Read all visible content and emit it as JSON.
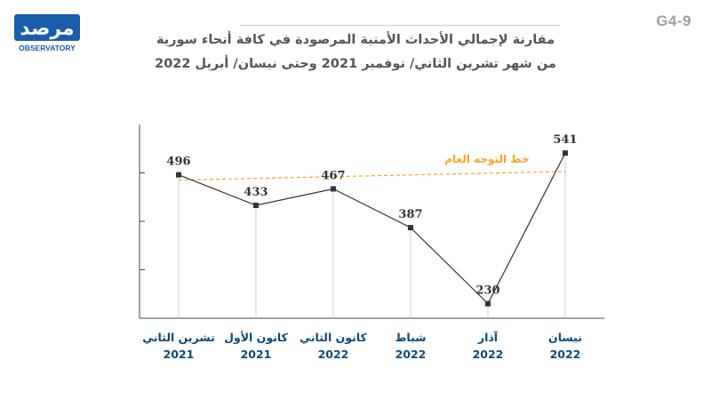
{
  "header": {
    "code": "G4-9",
    "title_line1": "مقارنة لإجمالي الأحداث الأمنية المرصودة في كافة أنحاء سورية",
    "title_line2": "من شهر تشرين الثاني/ نوفمبر 2021 وحتى  نيسان/ أبريل 2022"
  },
  "logo": {
    "text": "مرصد",
    "subtext": "OBSERVATORY"
  },
  "colors": {
    "line": "#333333",
    "trend": "#f5a623",
    "label": "#0d4a7a",
    "value": "#333333",
    "axis": "#444444",
    "grid": "#cccccc"
  },
  "chart_data": {
    "type": "line",
    "title": "مقارنة لإجمالي الأحداث الأمنية المرصودة في كافة أنحاء سورية",
    "categories": [
      {
        "month": "تشرين الثاني",
        "year": "2021"
      },
      {
        "month": "كانون الأول",
        "year": "2021"
      },
      {
        "month": "كانون الثاني",
        "year": "2022"
      },
      {
        "month": "شباط",
        "year": "2022"
      },
      {
        "month": "آذار",
        "year": "2022"
      },
      {
        "month": "نيسان",
        "year": "2022"
      }
    ],
    "values": [
      496,
      433,
      467,
      387,
      230,
      541
    ],
    "ylim": [
      200,
      600
    ],
    "yticks": [
      200,
      300,
      400,
      500
    ],
    "trend": {
      "label": "خط التوجه العام",
      "start": 485,
      "end": 503
    },
    "grid": false,
    "legend": "none"
  }
}
